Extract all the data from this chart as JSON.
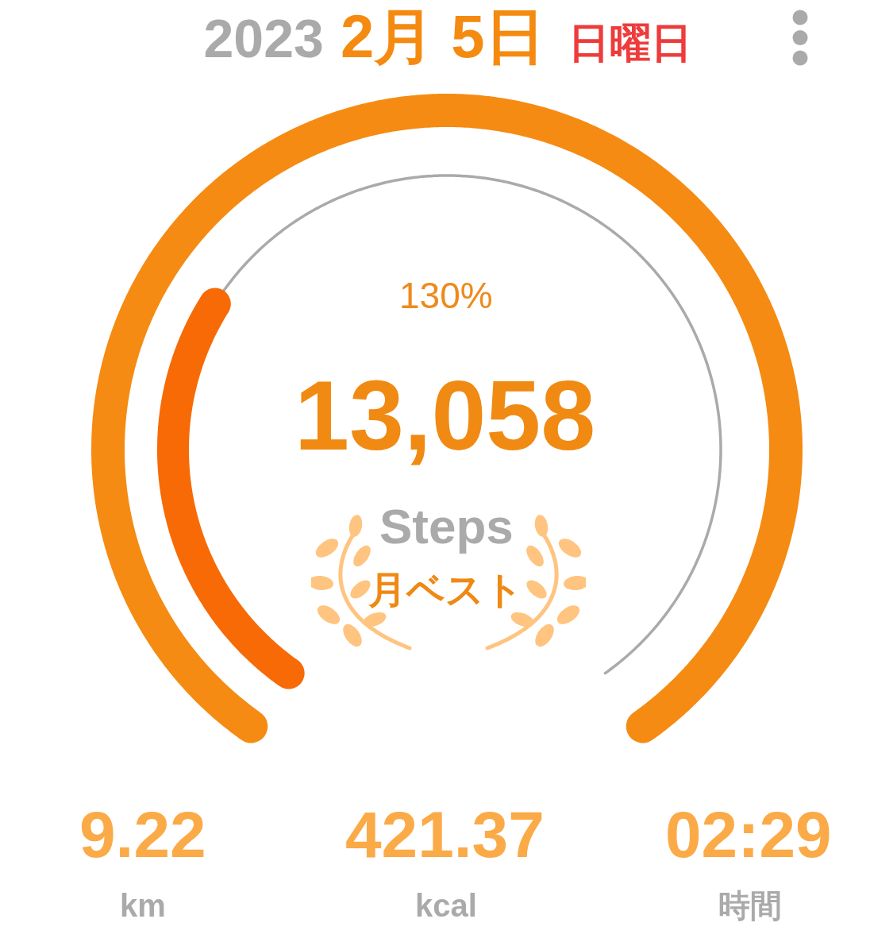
{
  "chart_data": {
    "type": "other",
    "title": "2023 2月 5日 日曜日",
    "values": [
      130
    ],
    "value_labels": [
      "130%"
    ],
    "color": "#f58b12",
    "annotations": [
      "13,058",
      "Steps",
      "月ベスト",
      "9.22",
      "km",
      "421.37",
      "kcal",
      "02:29",
      "時間"
    ]
  }
}
